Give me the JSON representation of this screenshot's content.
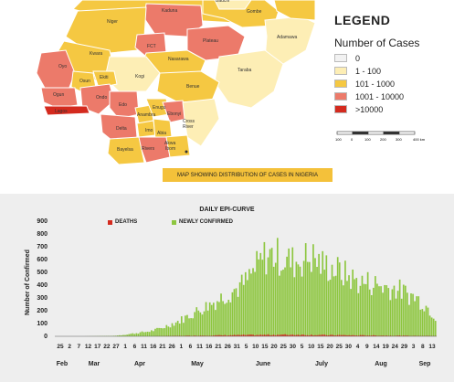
{
  "map": {
    "legend_title": "LEGEND",
    "legend_subtitle": "Number of Cases",
    "legend_items": [
      {
        "label": "0",
        "color": "#f2f2f2"
      },
      {
        "label": "1 - 100",
        "color": "#fdeeb5"
      },
      {
        "label": "101 - 1000",
        "color": "#f5c842"
      },
      {
        "label": "1001 - 10000",
        "color": "#ec7a6a"
      },
      {
        "label": ">10000",
        "color": "#d42a1e"
      }
    ],
    "scale_labels": [
      "100",
      "0",
      "100",
      "200",
      "300",
      "400 km"
    ],
    "caption": "MAP SHOWING DISTRIBUTION OF CASES IN NIGERIA",
    "states": [
      {
        "name": "Kaduna",
        "category": ">1001"
      },
      {
        "name": "Niger",
        "category": "101-1000"
      },
      {
        "name": "FCT",
        "category": "1001-10000"
      },
      {
        "name": "Plateau",
        "category": "1001-10000"
      },
      {
        "name": "Gombe",
        "category": "101-1000"
      },
      {
        "name": "Adamawa",
        "category": "1-100"
      },
      {
        "name": "Kwara",
        "category": "101-1000"
      },
      {
        "name": "Oyo",
        "category": "1001-10000"
      },
      {
        "name": "Osun",
        "category": "101-1000"
      },
      {
        "name": "Ekiti",
        "category": "101-1000"
      },
      {
        "name": "Kogi",
        "category": "1-100"
      },
      {
        "name": "Nasarawa",
        "category": "101-1000"
      },
      {
        "name": "Taraba",
        "category": "1-100"
      },
      {
        "name": "Benue",
        "category": "101-1000"
      },
      {
        "name": "Ogun",
        "category": "1001-10000"
      },
      {
        "name": "Ondo",
        "category": "1001-10000"
      },
      {
        "name": "Edo",
        "category": "1001-10000"
      },
      {
        "name": "Lagos",
        "category": ">10000"
      },
      {
        "name": "Anambra",
        "category": "101-1000"
      },
      {
        "name": "Enugu",
        "category": "101-1000"
      },
      {
        "name": "Ebonyi",
        "category": "1001-10000"
      },
      {
        "name": "Delta",
        "category": "1001-10000"
      },
      {
        "name": "Imo",
        "category": "101-1000"
      },
      {
        "name": "Abia",
        "category": "101-1000"
      },
      {
        "name": "Cross River",
        "category": "1-100"
      },
      {
        "name": "Akwa Ibom",
        "category": "101-1000"
      },
      {
        "name": "Bayelsa",
        "category": "101-1000"
      },
      {
        "name": "Rivers",
        "category": "1001-10000"
      }
    ],
    "colors": {
      "c0": "#f2f2f2",
      "c1": "#fdeeb5",
      "c2": "#f5c842",
      "c3": "#ec7a6a",
      "c4": "#d42a1e",
      "border": "#ffffff"
    }
  },
  "chart_data": {
    "type": "bar",
    "title": "DAILY EPI-CURVE",
    "ylabel": "Number of Confirmed",
    "ylim": [
      0,
      900
    ],
    "yticks": [
      0,
      100,
      200,
      300,
      400,
      500,
      600,
      700,
      800,
      900
    ],
    "xtick_labels": [
      "25",
      "2",
      "7",
      "12",
      "17",
      "22",
      "27",
      "1",
      "6",
      "11",
      "16",
      "21",
      "26",
      "1",
      "6",
      "11",
      "16",
      "21",
      "26",
      "31",
      "5",
      "10",
      "15",
      "20",
      "25",
      "30",
      "5",
      "10",
      "15",
      "20",
      "25",
      "30",
      "4",
      "9",
      "14",
      "19",
      "24",
      "29",
      "3",
      "8",
      "13"
    ],
    "month_labels": [
      "Feb",
      "Mar",
      "Apr",
      "May",
      "June",
      "July",
      "Aug",
      "Sep"
    ],
    "series": [
      {
        "name": "DEATHS",
        "color": "#d42a1e",
        "weekly_avg": [
          0,
          0,
          0,
          0,
          0,
          0,
          0,
          0,
          0,
          0,
          0,
          1,
          2,
          3,
          4,
          5,
          6,
          7,
          8,
          9,
          10,
          10,
          11,
          12,
          12,
          13,
          12,
          11,
          10,
          9,
          9,
          8,
          7,
          7,
          6,
          5,
          5,
          4,
          3,
          3,
          2
        ]
      },
      {
        "name": "NEWLY CONFIRMED",
        "color": "#8dc63f",
        "weekly_avg": [
          0,
          0,
          0,
          0,
          1,
          2,
          3,
          10,
          20,
          30,
          40,
          60,
          90,
          120,
          160,
          200,
          240,
          280,
          330,
          370,
          420,
          520,
          620,
          640,
          600,
          580,
          600,
          620,
          560,
          540,
          500,
          460,
          420,
          420,
          400,
          380,
          370,
          330,
          300,
          240,
          150
        ]
      }
    ]
  }
}
